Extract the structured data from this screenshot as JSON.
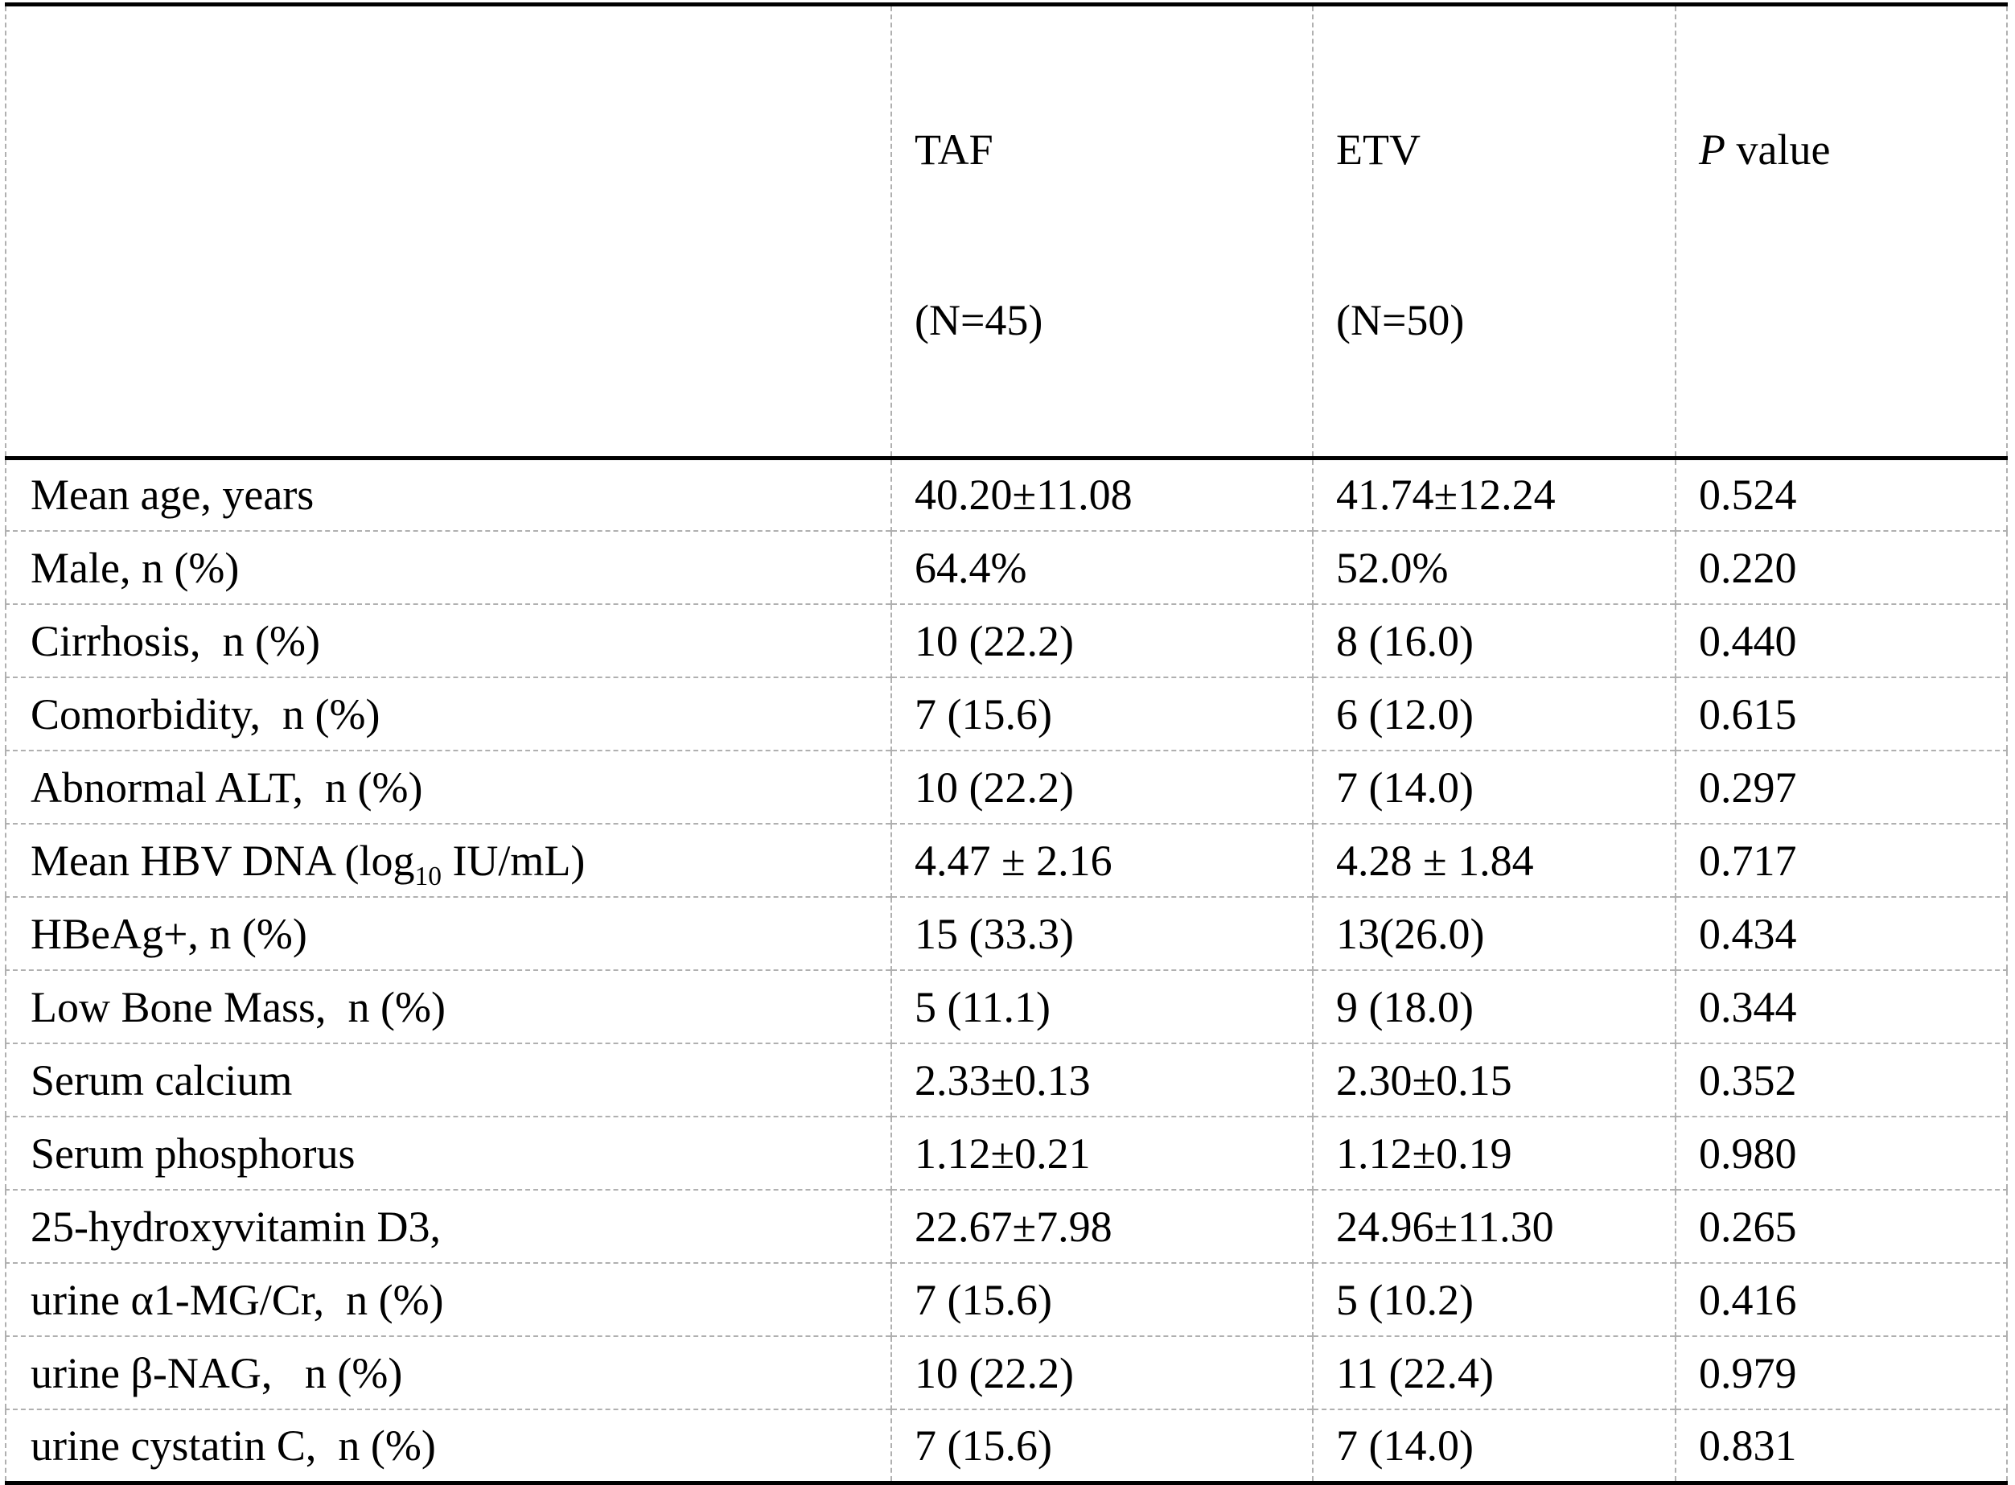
{
  "colors": {
    "background": "#ffffff",
    "rule_black": "#000000",
    "grid_gray": "#b0b0b0"
  },
  "table": {
    "header": {
      "characteristic": "",
      "taf_line1": "TAF",
      "taf_line2": "(N=45)",
      "etv_line1": "ETV",
      "etv_line2": "(N=50)",
      "p_italic": "P",
      "p_rest": " value"
    },
    "rows": [
      {
        "label": "Mean age, years",
        "taf": "40.20±11.08",
        "etv": "41.74±12.24",
        "p": "0.524"
      },
      {
        "label": "Male, n (%)",
        "taf": "64.4%",
        "etv": "52.0%",
        "p": "0.220"
      },
      {
        "label": "Cirrhosis,  n (%)",
        "taf": "10 (22.2)",
        "etv": "8 (16.0)",
        "p": "0.440"
      },
      {
        "label": "Comorbidity,  n (%)",
        "taf": "7 (15.6)",
        "etv": "6 (12.0)",
        "p": "0.615"
      },
      {
        "label": "Abnormal ALT,  n (%)",
        "taf": "10 (22.2)",
        "etv": "7 (14.0)",
        "p": "0.297"
      },
      {
        "label_parts": [
          {
            "t": "Mean HBV DNA (log"
          },
          {
            "t": "10",
            "sub": true
          },
          {
            "t": " IU/mL)"
          }
        ],
        "label": "Mean HBV DNA (log10 IU/mL)",
        "taf": "4.47 ± 2.16",
        "etv": "4.28 ± 1.84",
        "p": "0.717"
      },
      {
        "label": "HBeAg+, n (%)",
        "taf": "15 (33.3)",
        "etv": "13(26.0)",
        "p": "0.434"
      },
      {
        "label": "Low Bone Mass,  n (%)",
        "taf": "5 (11.1)",
        "etv": "9 (18.0)",
        "p": "0.344"
      },
      {
        "label": "Serum calcium",
        "taf": "2.33±0.13",
        "etv": "2.30±0.15",
        "p": "0.352"
      },
      {
        "label": "Serum phosphorus",
        "taf": "1.12±0.21",
        "etv": "1.12±0.19",
        "p": "0.980"
      },
      {
        "label": "25-hydroxyvitamin D3,",
        "taf": "22.67±7.98",
        "etv": "24.96±11.30",
        "p": "0.265"
      },
      {
        "label": "urine α1-MG/Cr,  n (%)",
        "taf": "7 (15.6)",
        "etv": "5 (10.2)",
        "p": "0.416"
      },
      {
        "label": "urine β-NAG,   n (%)",
        "taf": "10 (22.2)",
        "etv": "11 (22.4)",
        "p": "0.979"
      },
      {
        "label": "urine cystatin C,  n (%)",
        "taf": "7 (15.6)",
        "etv": "7 (14.0)",
        "p": "0.831"
      }
    ]
  }
}
